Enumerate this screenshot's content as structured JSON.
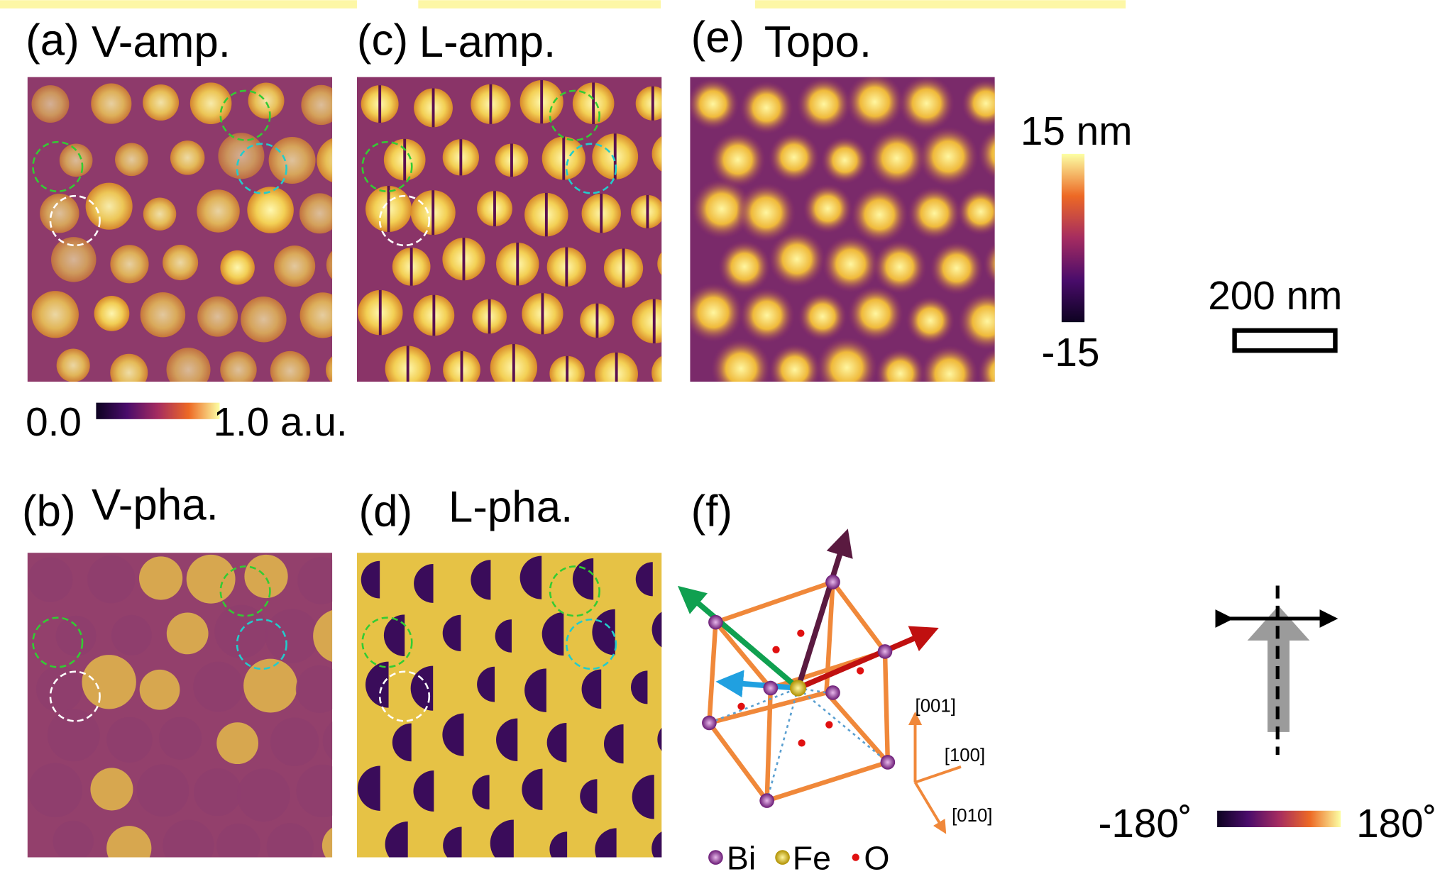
{
  "panels": [
    {
      "letter": "(a)",
      "title": "V-amp."
    },
    {
      "letter": "(c)",
      "title": "L-amp."
    },
    {
      "letter": "(e)",
      "title": "Topo."
    },
    {
      "letter": "(b)",
      "title": "V-pha."
    },
    {
      "letter": "(d)",
      "title": "L-pha."
    },
    {
      "letter": "(f)"
    }
  ],
  "amp_colorbar": {
    "min": "0.0",
    "max": "1.0 a.u."
  },
  "topo_colorbar": {
    "max": "15 nm",
    "min": "-15"
  },
  "scale_bar": "200 nm",
  "phase_colorbar": {
    "min": "-180˚",
    "max": "180˚"
  },
  "axes": [
    "[001]",
    "[100]",
    "[010]"
  ],
  "legend": [
    "Bi",
    "Fe",
    "O"
  ]
}
